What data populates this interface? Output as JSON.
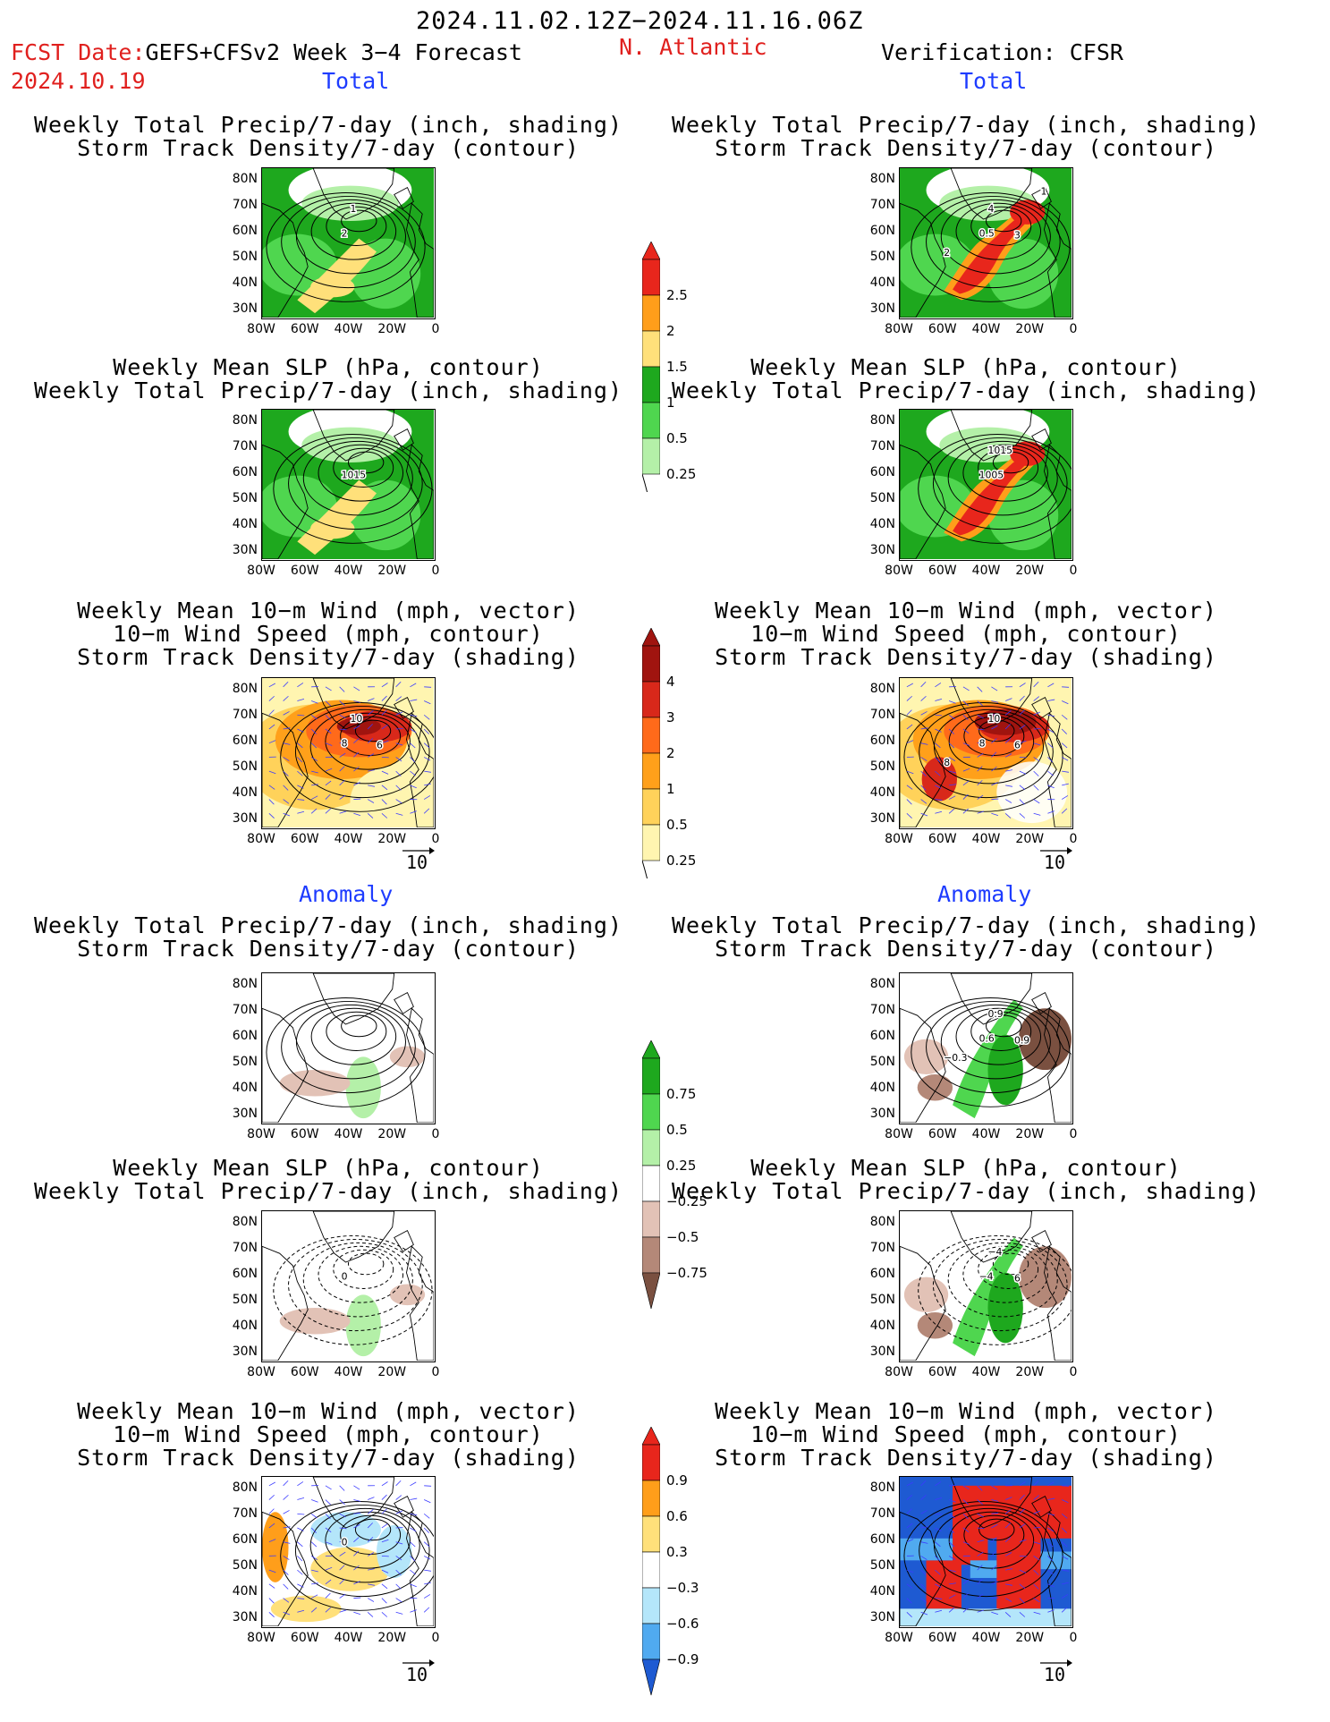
{
  "header": {
    "date_range": "2024.11.02.12Z−2024.11.16.06Z",
    "fcst_label": "FCST Date:",
    "model": "GEFS+CFSv2 Week 3−4 Forecast",
    "fcst_date": "2024.10.19",
    "region": "N. Atlantic",
    "verification": "Verification: CFSR"
  },
  "sections": {
    "total_left": "Total",
    "total_right": "Total",
    "anom_left": "Anomaly",
    "anom_right": "Anomaly"
  },
  "titles": {
    "precip_storm": [
      "Weekly Total Precip/7-day (inch, shading)",
      "Storm Track Density/7-day (contour)"
    ],
    "slp_precip": [
      "Weekly Mean SLP (hPa, contour)",
      "Weekly Total Precip/7-day (inch, shading)"
    ],
    "wind": [
      "Weekly Mean 10−m Wind (mph, vector)",
      "10−m Wind Speed (mph, contour)",
      "Storm Track Density/7-day (shading)"
    ]
  },
  "axes": {
    "lat_ticks": [
      "80N",
      "70N",
      "60N",
      "50N",
      "40N",
      "30N"
    ],
    "lon_ticks": [
      "80W",
      "60W",
      "40W",
      "20W",
      "0"
    ]
  },
  "vector_ref": "10",
  "colorbars": {
    "precip_total": {
      "labels": [
        "2.5",
        "2",
        "1.5",
        "1",
        "0.5",
        "0.25"
      ],
      "colors": [
        "#e8261c",
        "#ff9e1a",
        "#ffe07a",
        "#1ea81e",
        "#4fd64f",
        "#b4f0a8"
      ]
    },
    "storm_total": {
      "labels": [
        "4",
        "3",
        "2",
        "1",
        "0.5",
        "0.25"
      ],
      "colors": [
        "#a0140f",
        "#d8281a",
        "#ff6a1a",
        "#ffa01a",
        "#ffd25a",
        "#fff5b0"
      ]
    },
    "precip_anom": {
      "labels": [
        "0.75",
        "0.5",
        "0.25",
        "−0.25",
        "−0.5",
        "−0.75"
      ],
      "colors": [
        "#1ea81e",
        "#4fd64f",
        "#b4f0a8",
        "#ffffff",
        "#e2c2b6",
        "#b48878",
        "#7a5040"
      ]
    },
    "storm_anom": {
      "labels": [
        "0.9",
        "0.6",
        "0.3",
        "−0.3",
        "−0.6",
        "−0.9"
      ],
      "colors": [
        "#e8261c",
        "#ff9e1a",
        "#ffe07a",
        "#ffffff",
        "#b4e6fa",
        "#50aaf0",
        "#1e5ad2"
      ]
    }
  },
  "contour_labels": {
    "total_fc_precip": [
      "2",
      "1"
    ],
    "total_ob_precip": [
      "0.5",
      "4",
      "3",
      "2",
      "1"
    ],
    "total_fc_slp": [
      "1015"
    ],
    "total_ob_slp": [
      "1005",
      "1015"
    ],
    "total_fc_wind": [
      "8",
      "10",
      "6"
    ],
    "total_ob_wind": [
      "8",
      "10",
      "6",
      "8"
    ],
    "anom_ob_precip": [
      "0.6",
      "0.9",
      "0.9",
      "−0.3"
    ],
    "anom_fc_slp": [
      "0"
    ],
    "anom_ob_slp": [
      "−4",
      "−4",
      "6"
    ],
    "anom_fc_wind": [
      "0"
    ]
  }
}
